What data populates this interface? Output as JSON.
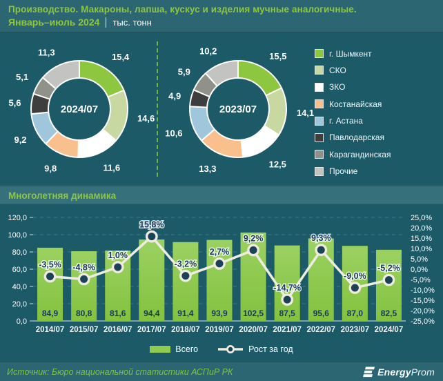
{
  "header": {
    "title_line1": "Производство. Макароны, лапша, кускус и изделия мучные аналогичные.",
    "period": "Январь–июль 2024",
    "unit": "тыс. тонн"
  },
  "sections": {
    "dynamics_title": "Многолетняя динамика"
  },
  "footer": {
    "source": "Источник: Бюро национальной статистики АСПиР РК",
    "logo_bold": "Energy",
    "logo_light": "Prom"
  },
  "colors": {
    "page_bg": "#1c5a68",
    "panel_bg": "#2d6673",
    "band_bg": "#36707a",
    "accent_green": "#8dc63f",
    "bar_green_top": "#9bd162",
    "bar_green_bottom": "#83c23e",
    "line_cream": "#eeebdf",
    "marker_navy": "#1d4156",
    "label_navy": "#17395c",
    "grid_teal": "#4f8b9d",
    "axis_text": "#ffffff",
    "divider_green": "#6db345"
  },
  "chart_data": [
    {
      "type": "pie",
      "subtype": "donut",
      "center_label": "2024/07",
      "unit": "тыс. тонн",
      "categories": [
        "г. Шымкент",
        "СКО",
        "ЗКО",
        "Костанайская",
        "г. Астана",
        "Павлодарская",
        "Карагандинская",
        "Прочие"
      ],
      "values": [
        15.4,
        14.6,
        11.6,
        9.8,
        9.2,
        5.6,
        5.1,
        11.3
      ],
      "colors": [
        "#8dc63f",
        "#c7d8a0",
        "#ffffff",
        "#f9c08d",
        "#a0c6db",
        "#3e3e3e",
        "#90928a",
        "#c3c3c1"
      ],
      "legend_position": "right"
    },
    {
      "type": "pie",
      "subtype": "donut",
      "center_label": "2023/07",
      "unit": "тыс. тонн",
      "categories": [
        "г. Шымкент",
        "СКО",
        "ЗКО",
        "Костанайская",
        "г. Астана",
        "Павлодарская",
        "Карагандинская",
        "Прочие"
      ],
      "values": [
        15.5,
        14.1,
        12.5,
        13.3,
        10.6,
        4.9,
        5.9,
        10.2
      ],
      "colors": [
        "#8dc63f",
        "#c7d8a0",
        "#ffffff",
        "#f9c08d",
        "#a0c6db",
        "#3e3e3e",
        "#90928a",
        "#c3c3c1"
      ],
      "legend_position": "right"
    },
    {
      "type": "bar",
      "subtype": "bar+line combo",
      "title": "Многолетняя динамика",
      "categories": [
        "2014/07",
        "2015/07",
        "2016/07",
        "2017/07",
        "2018/07",
        "2019/07",
        "2020/07",
        "2021/07",
        "2022/07",
        "2023/07",
        "2024/07"
      ],
      "series": [
        {
          "name": "Всего",
          "type": "bar",
          "axis": "left",
          "unit": "тыс. тонн",
          "values": [
            84.9,
            80.8,
            81.6,
            94.4,
            91.4,
            93.9,
            102.5,
            87.5,
            95.6,
            87.0,
            82.5
          ]
        },
        {
          "name": "Рост за год",
          "type": "line",
          "axis": "right",
          "unit": "%",
          "values": [
            -3.5,
            -4.8,
            1.0,
            15.8,
            -3.2,
            2.7,
            9.2,
            -14.7,
            9.3,
            -9.0,
            -5.2
          ]
        }
      ],
      "left_axis": {
        "min": 0,
        "max": 120,
        "step": 20,
        "ticks": [
          "0,0",
          "20,0",
          "40,0",
          "60,0",
          "80,0",
          "100,0",
          "120,0"
        ]
      },
      "right_axis": {
        "min": -25,
        "max": 25,
        "step": 5,
        "suffix": "%",
        "ticks": [
          "-25,0%",
          "-20,0%",
          "-15,0%",
          "-10,0%",
          "-5,0%",
          "0,0%",
          "5,0%",
          "10,0%",
          "15,0%",
          "20,0%",
          "25,0%"
        ]
      },
      "grid": "dashed horizontal",
      "legend_position": "bottom"
    }
  ]
}
